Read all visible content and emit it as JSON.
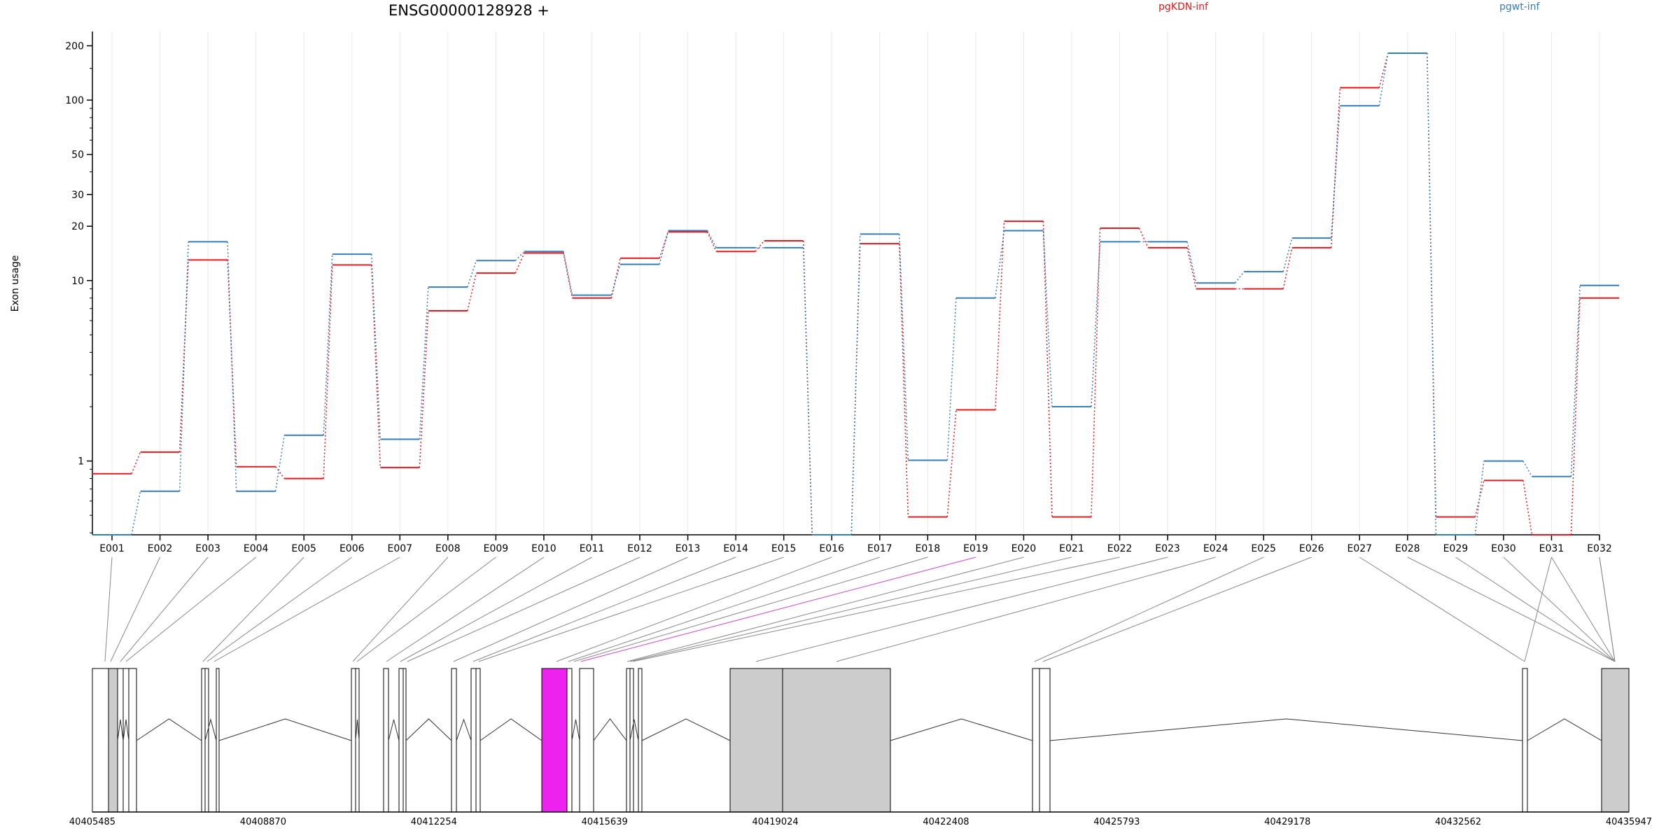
{
  "chart_data": {
    "type": "line",
    "title": "ENSG00000128928 +",
    "ylabel": "Exon usage",
    "yscale": "log",
    "ylim": [
      0.39,
      240
    ],
    "yticks": [
      1,
      10,
      20,
      30,
      50,
      100,
      200
    ],
    "grid": true,
    "legend_placement": "top",
    "categories": [
      "E001",
      "E002",
      "E003",
      "E004",
      "E005",
      "E006",
      "E007",
      "E008",
      "E009",
      "E010",
      "E011",
      "E012",
      "E013",
      "E014",
      "E015",
      "E016",
      "E017",
      "E018",
      "E019",
      "E020",
      "E021",
      "E022",
      "E023",
      "E024",
      "E025",
      "E026",
      "E027",
      "E028",
      "E029",
      "E030",
      "E031",
      "E032"
    ],
    "highlight_exon": "E019",
    "series": [
      {
        "name": "pgKDN-inf",
        "color": "#e41a1c",
        "values": [
          0.85,
          1.12,
          13.0,
          0.93,
          0.8,
          12.2,
          0.92,
          6.8,
          11.0,
          14.2,
          8.0,
          13.3,
          18.6,
          14.5,
          16.6,
          0.39,
          16.0,
          0.49,
          1.92,
          21.3,
          0.49,
          19.5,
          15.2,
          9.0,
          9.0,
          15.2,
          117.0,
          182.0,
          0.49,
          0.78,
          0.39,
          8.0
        ]
      },
      {
        "name": "pgwt-inf",
        "color": "#377eb8",
        "values": [
          0.39,
          0.68,
          16.4,
          0.68,
          1.39,
          14.0,
          1.32,
          9.2,
          12.9,
          14.5,
          8.3,
          12.3,
          18.9,
          15.2,
          15.2,
          0.39,
          18.1,
          1.01,
          8.0,
          18.9,
          2.0,
          16.4,
          16.4,
          9.7,
          11.2,
          17.2,
          93.0,
          182.0,
          0.39,
          1.0,
          0.82,
          9.4
        ]
      }
    ]
  },
  "gene_model": {
    "coordinate_labels": [
      "40405485",
      "40408870",
      "40412254",
      "40415639",
      "40419024",
      "40422408",
      "40425793",
      "40429178",
      "40432562",
      "40435947"
    ]
  },
  "colors": {
    "exon_fill_default": "#ffffff",
    "exon_fill_gray": "#cccccc",
    "exon_fill_highlight": "#ee22ee",
    "connector_default": "#888888",
    "connector_highlight": "#cc44cc",
    "gridline": "#e8e8e8"
  }
}
